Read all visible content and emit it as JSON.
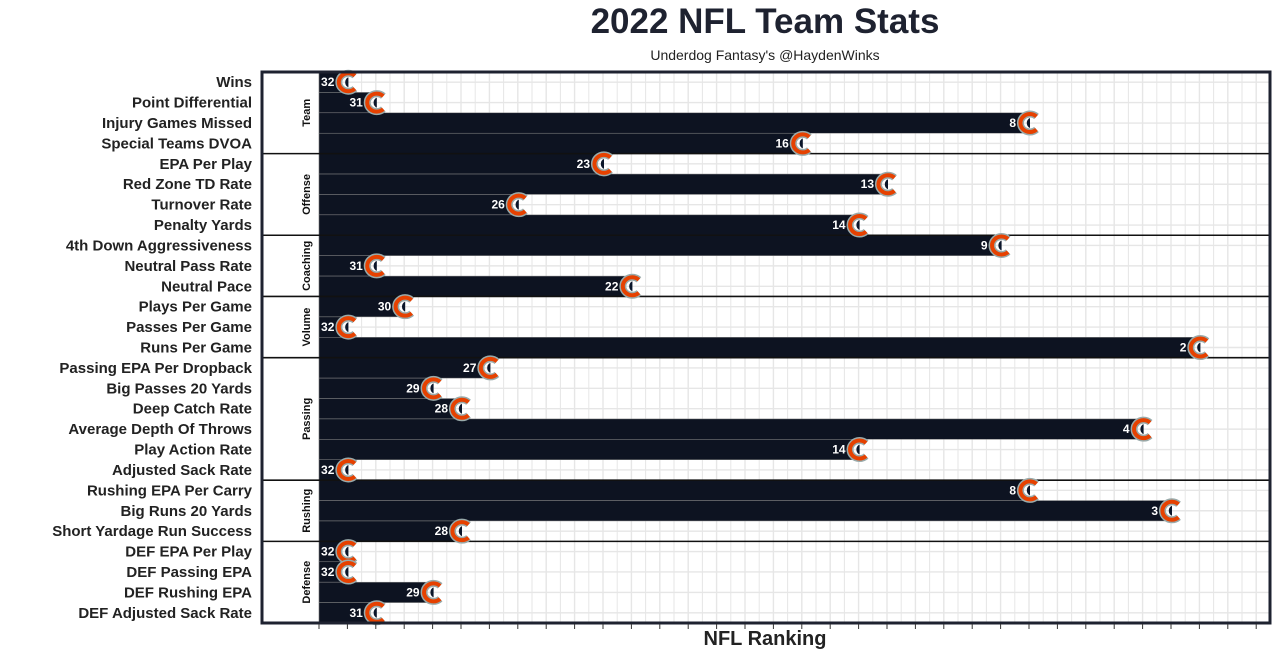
{
  "chart_data": {
    "type": "bar",
    "orientation": "horizontal",
    "title": "2022 NFL Team Stats",
    "subtitle": "Underdog Fantasy's @HaydenWinks",
    "xlabel": "NFL Ranking",
    "ylabel": "",
    "note": "Bar length = 33 - rank; rank printed inside bar",
    "xlim": [
      0,
      33
    ],
    "grid": true,
    "bar_color": "#0d1321",
    "logo_colors": {
      "orange": "#e64100",
      "navy": "#0b162a"
    },
    "facets": [
      "Team",
      "Offense",
      "Coaching",
      "Volume",
      "Passing",
      "Rushing",
      "Defense"
    ],
    "rows": [
      {
        "category": "Wins",
        "facet": "Team",
        "rank": 32
      },
      {
        "category": "Point Differential",
        "facet": "Team",
        "rank": 31
      },
      {
        "category": "Injury Games Missed",
        "facet": "Team",
        "rank": 8
      },
      {
        "category": "Special Teams DVOA",
        "facet": "Team",
        "rank": 16
      },
      {
        "category": "EPA Per Play",
        "facet": "Offense",
        "rank": 23
      },
      {
        "category": "Red Zone TD Rate",
        "facet": "Offense",
        "rank": 13
      },
      {
        "category": "Turnover Rate",
        "facet": "Offense",
        "rank": 26
      },
      {
        "category": "Penalty Yards",
        "facet": "Offense",
        "rank": 14
      },
      {
        "category": "4th Down Aggressiveness",
        "facet": "Coaching",
        "rank": 9
      },
      {
        "category": "Neutral Pass Rate",
        "facet": "Coaching",
        "rank": 31
      },
      {
        "category": "Neutral Pace",
        "facet": "Coaching",
        "rank": 22
      },
      {
        "category": "Plays Per Game",
        "facet": "Volume",
        "rank": 30
      },
      {
        "category": "Passes Per Game",
        "facet": "Volume",
        "rank": 32
      },
      {
        "category": "Runs Per Game",
        "facet": "Volume",
        "rank": 2
      },
      {
        "category": "Passing EPA Per Dropback",
        "facet": "Passing",
        "rank": 27
      },
      {
        "category": "Big Passes 20 Yards",
        "facet": "Passing",
        "rank": 29
      },
      {
        "category": "Deep Catch Rate",
        "facet": "Passing",
        "rank": 28
      },
      {
        "category": "Average Depth Of Throws",
        "facet": "Passing",
        "rank": 4
      },
      {
        "category": "Play Action Rate",
        "facet": "Passing",
        "rank": 14
      },
      {
        "category": "Adjusted Sack Rate",
        "facet": "Passing",
        "rank": 32
      },
      {
        "category": "Rushing EPA Per Carry",
        "facet": "Rushing",
        "rank": 8
      },
      {
        "category": "Big Runs 20 Yards",
        "facet": "Rushing",
        "rank": 3
      },
      {
        "category": "Short Yardage Run Success",
        "facet": "Rushing",
        "rank": 28
      },
      {
        "category": "DEF EPA Per Play",
        "facet": "Defense",
        "rank": 32
      },
      {
        "category": "DEF Passing EPA",
        "facet": "Defense",
        "rank": 32
      },
      {
        "category": "DEF Rushing EPA",
        "facet": "Defense",
        "rank": 29
      },
      {
        "category": "DEF Adjusted Sack Rate",
        "facet": "Defense",
        "rank": 31
      }
    ]
  }
}
